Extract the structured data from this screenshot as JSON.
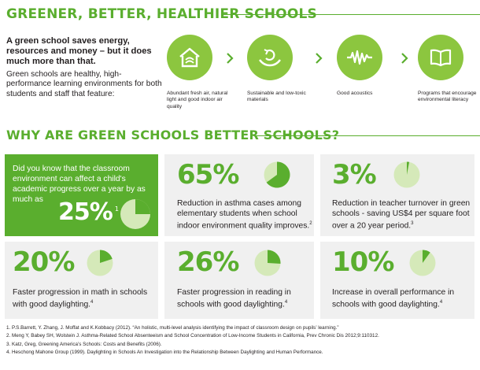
{
  "header": {
    "title": "GREENER, BETTER, HEALTHIER SCHOOLS"
  },
  "intro": {
    "lead": "A green school saves energy, resources and money – but it does much more than that.",
    "body": "Green schools are healthy, high-performance learning environments for both students and staff that feature:"
  },
  "features": [
    {
      "icon": "house-air-icon",
      "label": "Abundant fresh air, natural light and good indoor air quality"
    },
    {
      "icon": "recycle-hands-icon",
      "label": "Sustainable and low-toxic materials"
    },
    {
      "icon": "sound-wave-icon",
      "label": "Good acoustics"
    },
    {
      "icon": "open-book-icon",
      "label": "Programs that encourage environmental literacy"
    }
  ],
  "section": {
    "title": "WHY ARE GREEN SCHOOLS BETTER SCHOOLS?"
  },
  "colors": {
    "accent": "#5aae2e",
    "accent_light": "#8cc63f",
    "pie_bg": "#d5e9b9",
    "card_bg": "#f0f0f0"
  },
  "question_card": {
    "text": "Did you know that the classroom environment can affect a child's academic progress over a year by as much as",
    "stat": "25%",
    "ref": "1",
    "fraction": 0.25
  },
  "stats": [
    {
      "value": "65%",
      "fraction": 0.65,
      "text": "Reduction in asthma cases among elementary students when school indoor environment quality improves.",
      "ref": "2"
    },
    {
      "value": "3%",
      "fraction": 0.03,
      "text": "Reduction in teacher turnover in green schools - saving US$4 per square foot over a 20 year period.",
      "ref": "3"
    },
    {
      "value": "20%",
      "fraction": 0.2,
      "text": "Faster progression in math in schools with good daylighting.",
      "ref": "4"
    },
    {
      "value": "26%",
      "fraction": 0.26,
      "text": "Faster progression in reading in schools with good daylighting.",
      "ref": "4"
    },
    {
      "value": "10%",
      "fraction": 0.1,
      "text": "Increase in overall performance in schools with good daylighting.",
      "ref": "4"
    }
  ],
  "footnotes": [
    "1. P.S.Barrett, Y. Zhang, J. Moffat and K.Kobbacy (2012). “An holistic, multi-level analysis identifying the impact of classroom design on pupils’ learning.”",
    "2. Meng Y, Babey SH, Wolstein J. Asthma-Related School Absenteeism and School Concentration of Low-Income Students in California, Prev Chronic Dis 2012;9:110312.",
    "3. Katz, Greg, Greening America’s Schools: Costs and Benefits (2006).",
    "4. Heschong Mahone Group (1999). Daylighting in Schools An Investigation into the Relationship Between Daylighting and Human Performance."
  ]
}
